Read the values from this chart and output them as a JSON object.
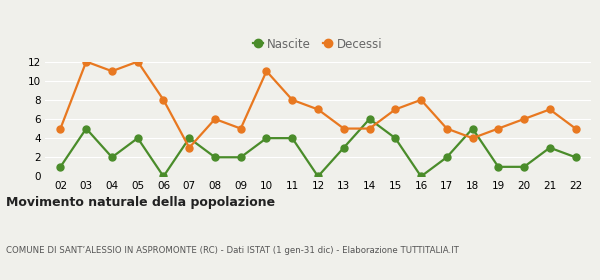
{
  "years": [
    2,
    3,
    4,
    5,
    6,
    7,
    8,
    9,
    10,
    11,
    12,
    13,
    14,
    15,
    16,
    17,
    18,
    19,
    20,
    21,
    22
  ],
  "nascite": [
    1,
    5,
    2,
    4,
    0,
    4,
    2,
    2,
    4,
    4,
    0,
    3,
    6,
    4,
    0,
    2,
    5,
    1,
    1,
    3,
    2
  ],
  "decessi": [
    5,
    12,
    11,
    12,
    8,
    3,
    6,
    5,
    11,
    8,
    7,
    5,
    5,
    7,
    8,
    5,
    4,
    5,
    6,
    7,
    5
  ],
  "nascite_color": "#4a8c2a",
  "decessi_color": "#e87820",
  "ylim": [
    0,
    12
  ],
  "yticks": [
    0,
    2,
    4,
    6,
    8,
    10,
    12
  ],
  "title": "Movimento naturale della popolazione",
  "subtitle": "COMUNE DI SANT’ALESSIO IN ASPROMONTE (RC) - Dati ISTAT (1 gen-31 dic) - Elaborazione TUTTITALIA.IT",
  "legend_nascite": "Nascite",
  "legend_decessi": "Decessi",
  "bg_color": "#f0f0eb",
  "grid_color": "#ffffff",
  "marker_size": 5,
  "line_width": 1.6
}
